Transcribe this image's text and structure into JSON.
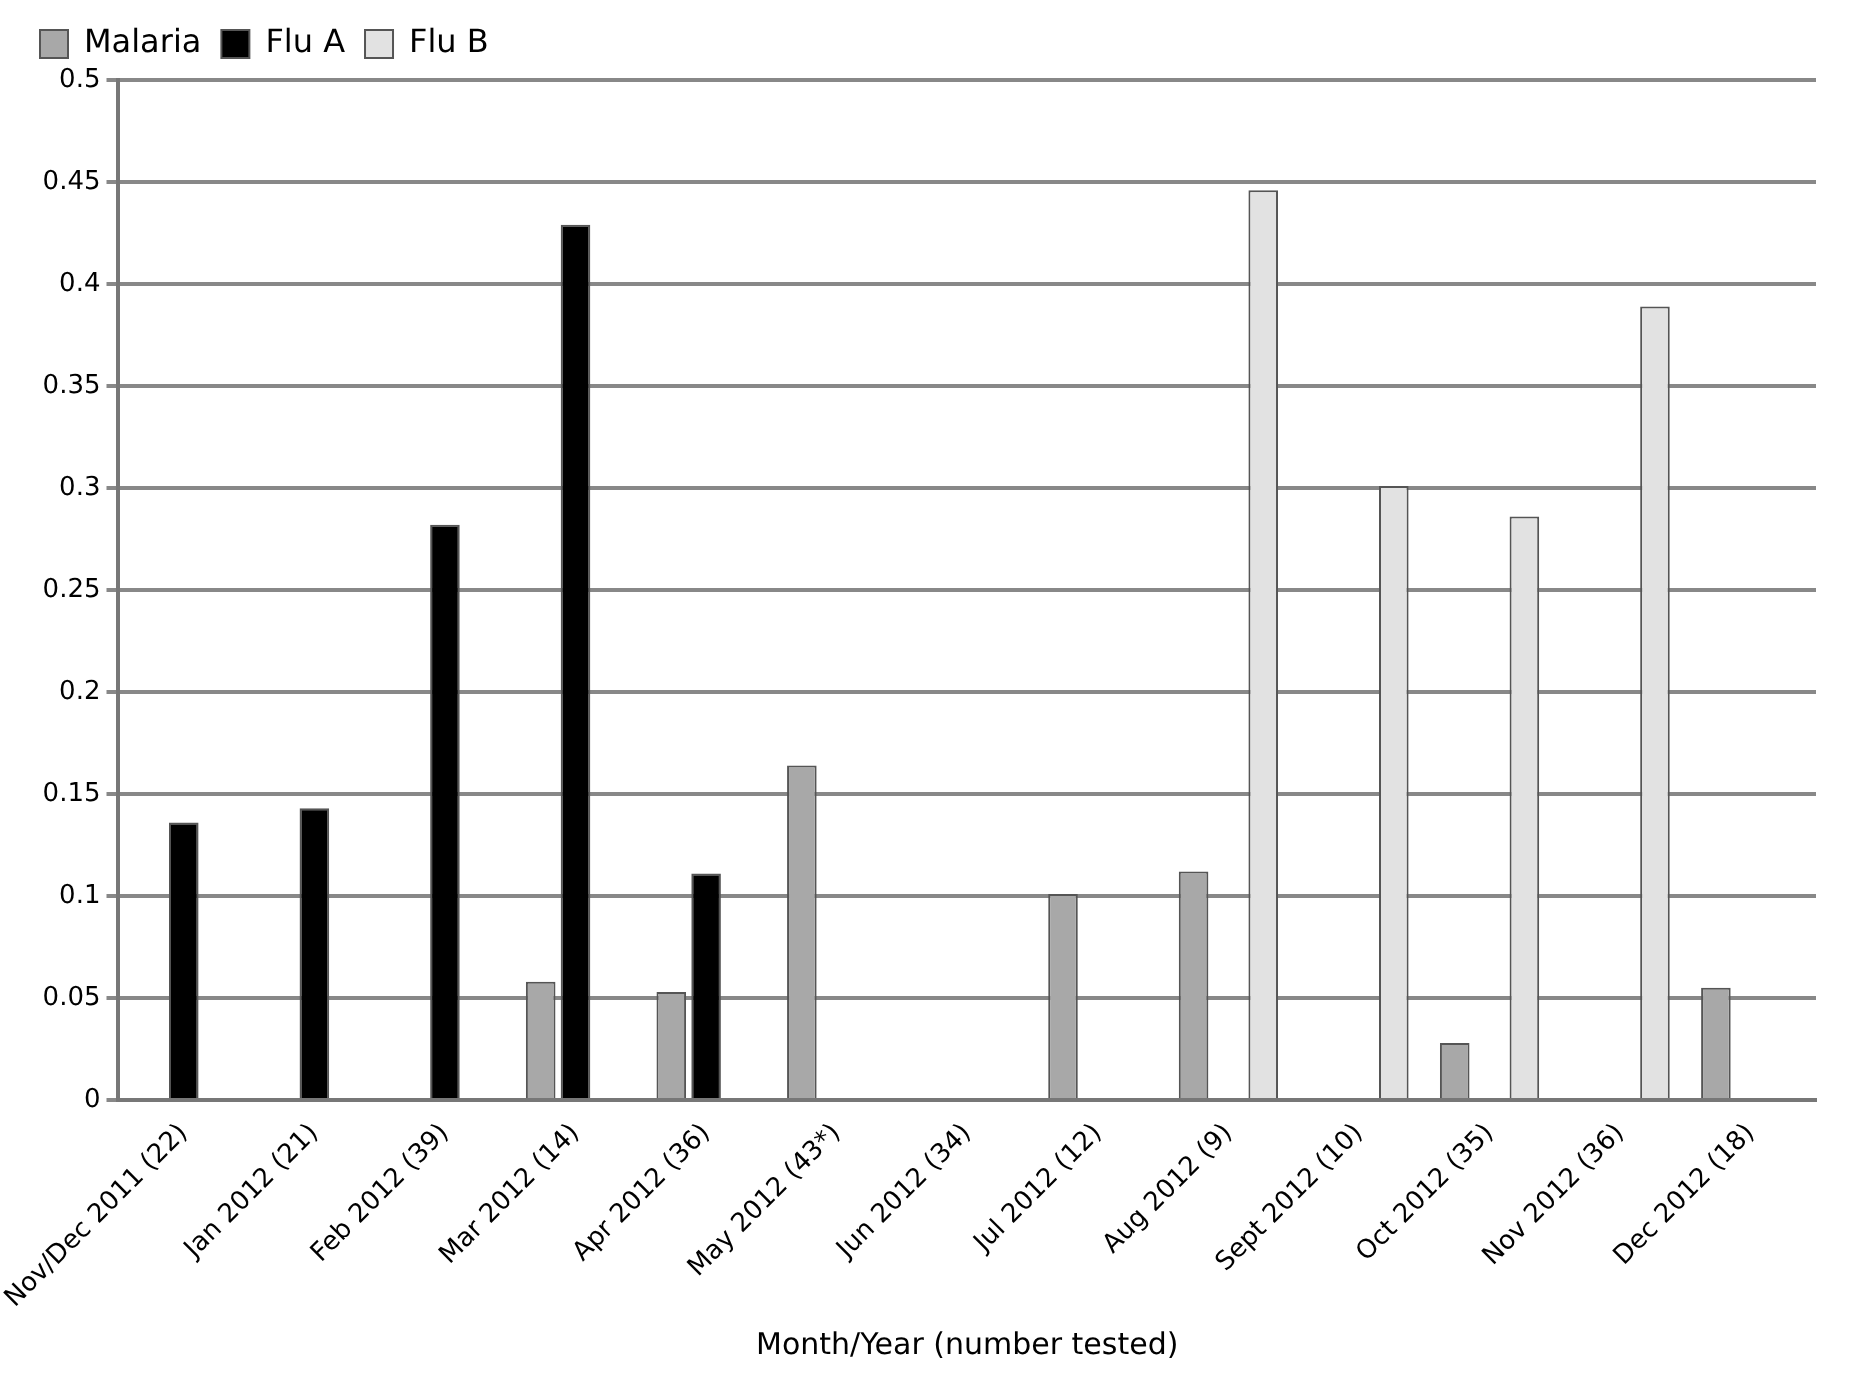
{
  "chart_data": {
    "type": "bar",
    "xlabel": "Month/Year (number tested)",
    "categories": [
      "Nov/Dec 2011 (22)",
      "Jan 2012 (21)",
      "Feb 2012 (39)",
      "Mar 2012 (14)",
      "Apr 2012 (36)",
      "May 2012 (43*)",
      "Jun 2012 (34)",
      "Jul 2012 (12)",
      "Aug 2012 (9)",
      "Sept 2012 (10)",
      "Oct 2012 (35)",
      "Nov 2012 (36)",
      "Dec 2012 (18)"
    ],
    "series": [
      {
        "name": "Malaria",
        "color": "#a8a8a8",
        "values": [
          null,
          null,
          null,
          0.058,
          0.053,
          0.164,
          null,
          0.101,
          0.112,
          null,
          0.028,
          null,
          0.055
        ]
      },
      {
        "name": "Flu A",
        "color": "#000000",
        "values": [
          0.136,
          0.143,
          0.282,
          0.429,
          0.111,
          null,
          null,
          null,
          null,
          null,
          null,
          null,
          null
        ]
      },
      {
        "name": "Flu B",
        "color": "#e2e2e2",
        "values": [
          null,
          null,
          null,
          null,
          null,
          null,
          null,
          null,
          0.446,
          0.301,
          0.286,
          0.389,
          null
        ]
      }
    ],
    "ylim": [
      0,
      0.5
    ],
    "yticks": [
      0,
      0.05,
      0.1,
      0.15,
      0.2,
      0.25,
      0.3,
      0.35,
      0.4,
      0.45,
      0.5
    ],
    "grid": "y",
    "legend": "top left"
  }
}
